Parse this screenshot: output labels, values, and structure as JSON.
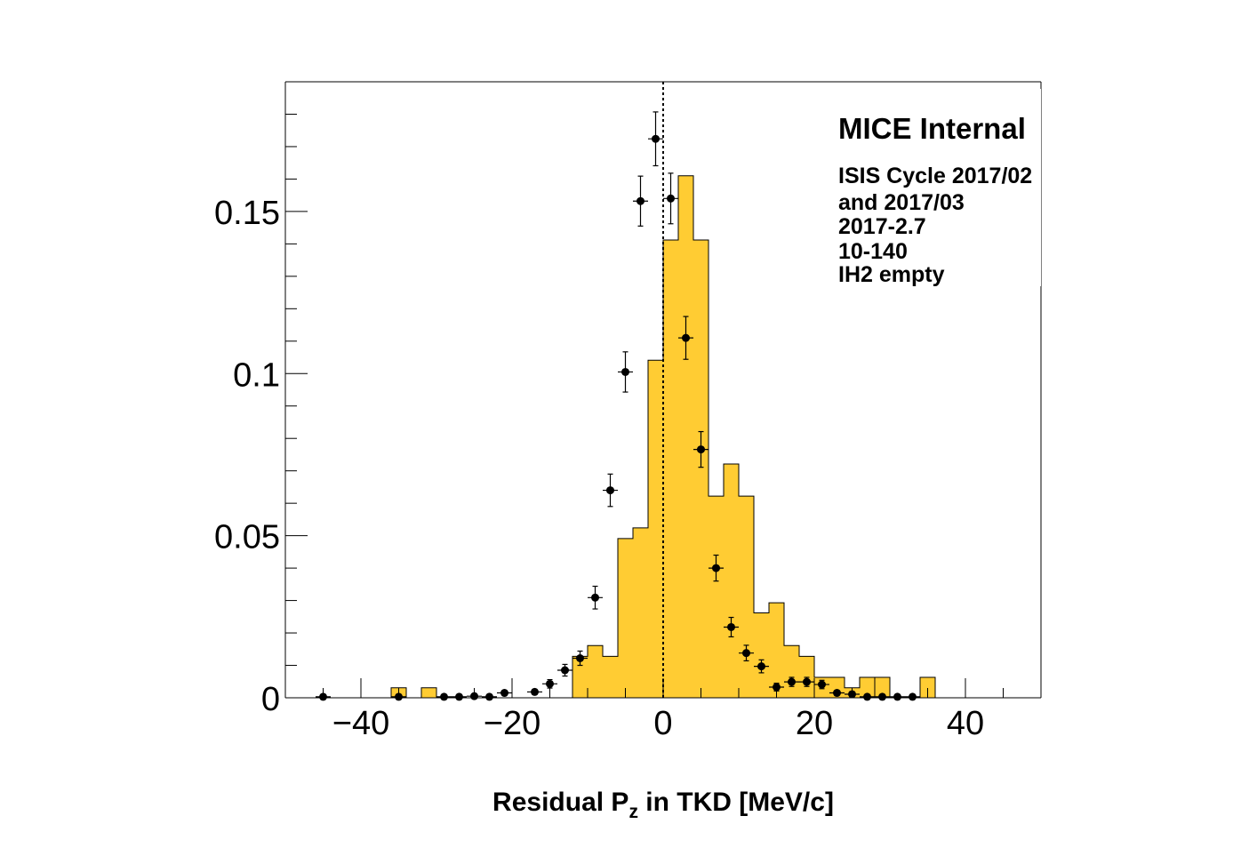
{
  "chart_data": {
    "type": "bar",
    "title": "",
    "xlabel": {
      "main": "Residual P",
      "sub": "z",
      "rest": " in TKD [MeV/c]"
    },
    "ylabel": "",
    "xlim": [
      -50,
      50
    ],
    "ylim": [
      0,
      0.19
    ],
    "x_ticks": [
      -40,
      -20,
      0,
      20,
      40
    ],
    "x_tick_labels": [
      "−40",
      "−20",
      "0",
      "20",
      "40"
    ],
    "y_ticks": [
      0,
      0.05,
      0.1,
      0.15
    ],
    "y_tick_labels": [
      "0",
      "0.05",
      "0.1",
      "0.15"
    ],
    "grid": false,
    "colors": {
      "hist_fill": "#ffcc33",
      "hist_line": "#000000",
      "points": "#000000"
    },
    "histogram": {
      "bin_width": 2,
      "bin_edges_start": -46,
      "values": [
        0,
        0,
        0,
        0,
        0,
        0,
        0,
        0,
        0,
        0,
        0,
        0,
        0,
        0,
        0,
        0,
        0,
        0.0128,
        0.0161,
        0.0128,
        0.0491,
        0.0524,
        0.1041,
        0.1412,
        0.161,
        0.1412,
        0.0622,
        0.0721,
        0.0622,
        0.0262,
        0.0293,
        0.0161,
        0.0128,
        0.0063,
        0.0063,
        0.0031,
        0.0063,
        0,
        0,
        0,
        0.0063,
        0,
        0,
        0,
        0,
        0
      ],
      "extra_bins": [
        {
          "x0": -36,
          "x1": -34,
          "y": 0.0031
        },
        {
          "x0": -32,
          "x1": -30,
          "y": 0.0031
        },
        {
          "x0": 22,
          "x1": 24,
          "y": 0.0063
        },
        {
          "x0": 28,
          "x1": 30,
          "y": 0.0063
        }
      ]
    },
    "points": {
      "x": [
        -45,
        -35,
        -29,
        -27,
        -25,
        -23,
        -21,
        -17,
        -15,
        -13,
        -11,
        -9,
        -7,
        -5,
        -3,
        -1,
        1,
        3,
        5,
        7,
        9,
        11,
        13,
        15,
        17,
        19,
        21,
        23,
        25,
        27,
        29,
        31,
        33
      ],
      "y": [
        0.0003,
        0.0003,
        0.0003,
        0.0003,
        0.0005,
        0.0003,
        0.0015,
        0.0018,
        0.0043,
        0.0085,
        0.0122,
        0.0309,
        0.064,
        0.1005,
        0.1532,
        0.1724,
        0.154,
        0.111,
        0.0766,
        0.04,
        0.0218,
        0.0138,
        0.0097,
        0.0033,
        0.0049,
        0.0049,
        0.0041,
        0.0015,
        0.0011,
        0.0003,
        0.0003,
        0.0003,
        0.0003
      ],
      "yerr": [
        0.0003,
        0.0003,
        0.0003,
        0.0003,
        0.0005,
        0.0003,
        0.0008,
        0.0008,
        0.0013,
        0.0018,
        0.0022,
        0.0035,
        0.005,
        0.0062,
        0.0077,
        0.0083,
        0.0078,
        0.0066,
        0.0055,
        0.004,
        0.003,
        0.0024,
        0.002,
        0.0012,
        0.0014,
        0.0014,
        0.0013,
        0.0008,
        0.0007,
        0.0003,
        0.0003,
        0.0003,
        0.0003
      ],
      "xerr": 1
    },
    "reference_line": {
      "x": 0,
      "style": "dotted"
    },
    "legend": {
      "placement": "top-right",
      "title": "MICE Internal",
      "lines": [
        "ISIS Cycle 2017/02",
        "and 2017/03",
        "2017-2.7",
        "10-140",
        "IH2 empty"
      ]
    }
  }
}
